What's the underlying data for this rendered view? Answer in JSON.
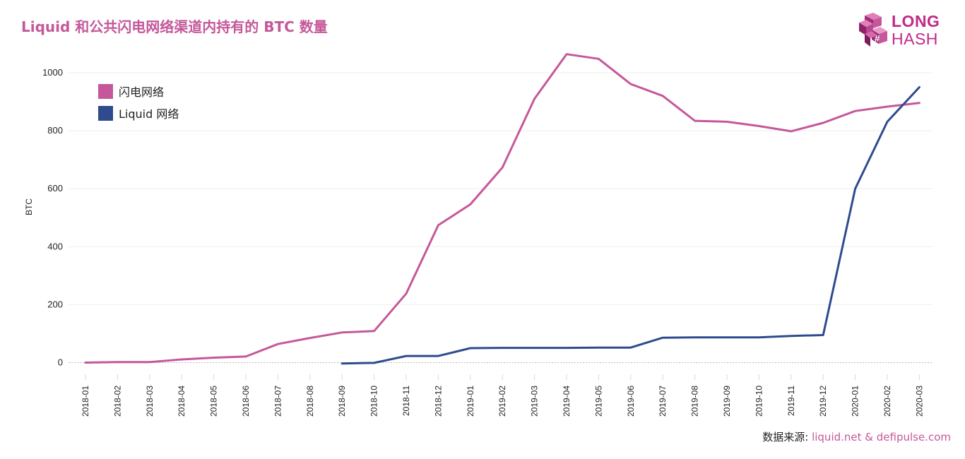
{
  "title": "Liquid 和公共闪电网络渠道内持有的 BTC 数量",
  "logo": {
    "line1": "LONG",
    "line2": "HASH",
    "color": "#c02a8a"
  },
  "source": {
    "prefix": "数据来源: ",
    "text": "liquid.net & defipulse.com"
  },
  "chart_data": {
    "type": "line",
    "ylabel": "BTC",
    "xlabel": "",
    "ylim": [
      -60,
      1100
    ],
    "yticks": [
      0,
      200,
      400,
      600,
      800,
      1000
    ],
    "grid": true,
    "legend_position": "top-left",
    "categories": [
      "2018-01",
      "2018-02",
      "2018-03",
      "2018-04",
      "2018-05",
      "2018-06",
      "2018-07",
      "2018-08",
      "2018-09",
      "2018-10",
      "2018-11",
      "2018-12",
      "2019-01",
      "2019-02",
      "2019-03",
      "2019-04",
      "2019-05",
      "2019-06",
      "2019-07",
      "2019-08",
      "2019-09",
      "2019-10",
      "2019-11",
      "2019-12",
      "2020-01",
      "2020-02",
      "2020-03"
    ],
    "series": [
      {
        "name": "闪电网络",
        "color": "#c5589a",
        "values": [
          0,
          2,
          2,
          11,
          17,
          21,
          64,
          85,
          104,
          109,
          238,
          474,
          546,
          673,
          910,
          1064,
          1048,
          961,
          920,
          834,
          831,
          816,
          798,
          827,
          868,
          883,
          896
        ]
      },
      {
        "name": "Liquid 网络",
        "color": "#2f4b8e",
        "values": [
          null,
          null,
          null,
          null,
          null,
          null,
          null,
          null,
          -3,
          -1,
          23,
          23,
          50,
          51,
          51,
          51,
          52,
          52,
          86,
          87,
          87,
          87,
          92,
          95,
          600,
          831,
          950
        ]
      }
    ]
  }
}
